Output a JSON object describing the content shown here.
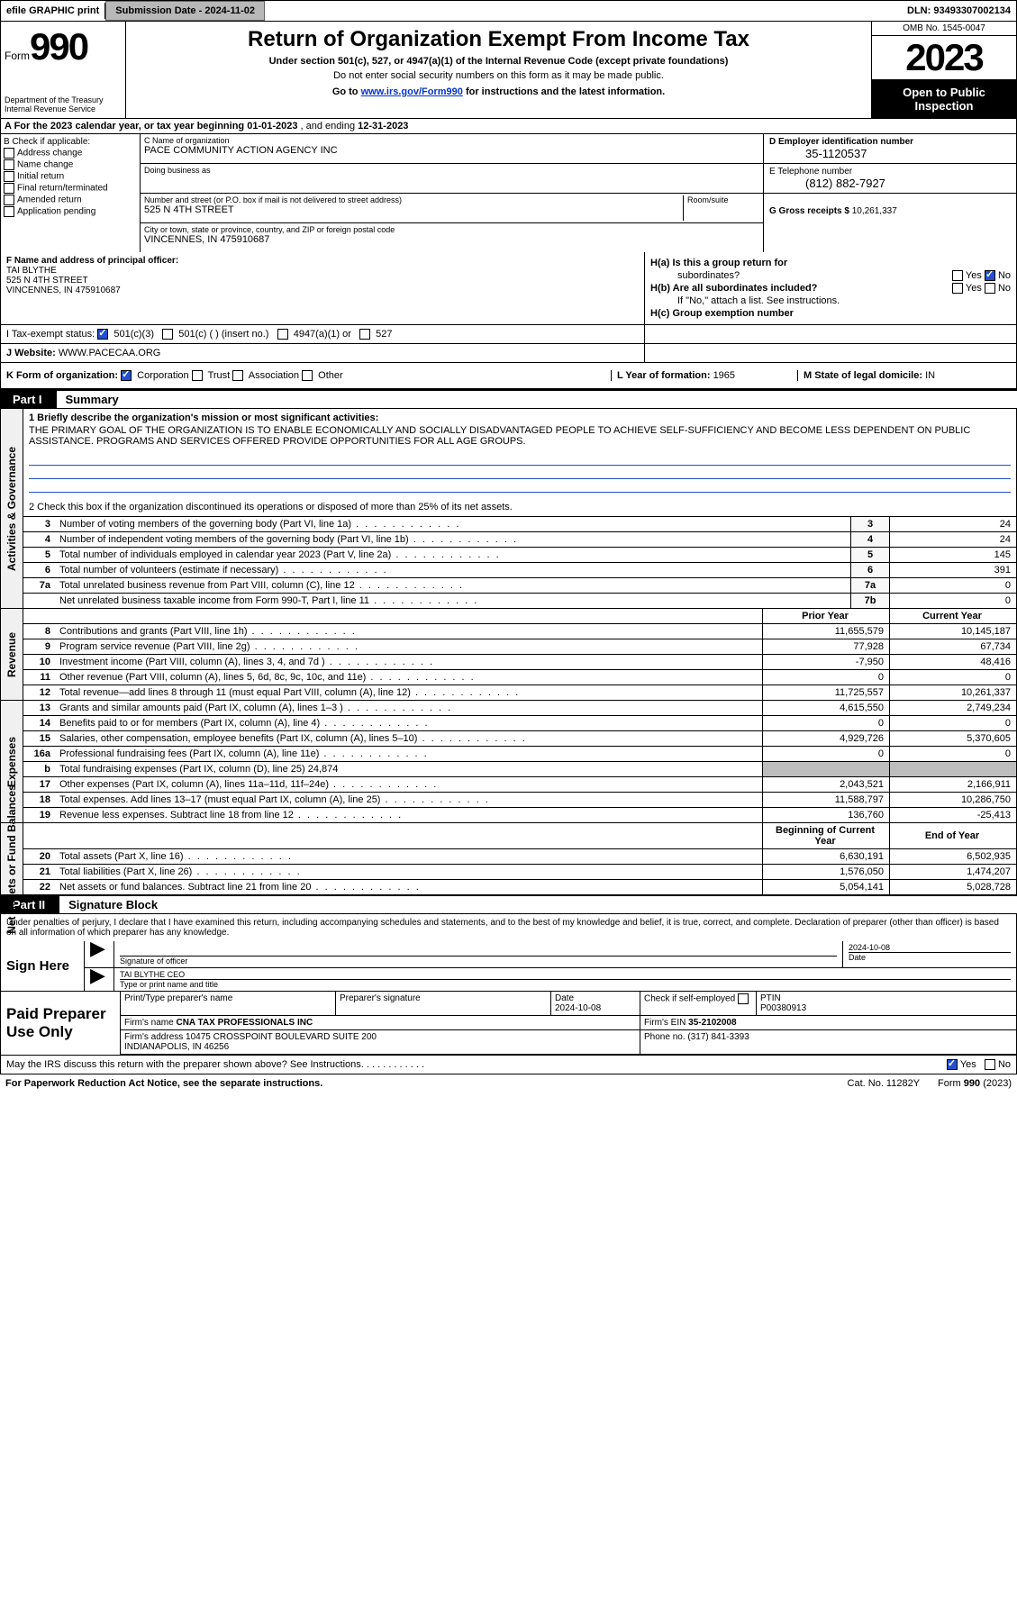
{
  "topbar": {
    "efile": "efile GRAPHIC print",
    "subdate_label": "Submission Date - ",
    "subdate": "2024-11-02",
    "dln_label": "DLN: ",
    "dln": "93493307002134"
  },
  "header": {
    "form_label": "Form",
    "form_num": "990",
    "title": "Return of Organization Exempt From Income Tax",
    "sub1": "Under section 501(c), 527, or 4947(a)(1) of the Internal Revenue Code (except private foundations)",
    "sub2": "Do not enter social security numbers on this form as it may be made public.",
    "goto_pre": "Go to ",
    "goto_link": "www.irs.gov/Form990",
    "goto_post": " for instructions and the latest information.",
    "dept": "Department of the Treasury\nInternal Revenue Service",
    "omb": "OMB No. 1545-0047",
    "year": "2023",
    "inspect": "Open to Public Inspection"
  },
  "rowA": {
    "pre": "A   For the 2023 calendar year, or tax year beginning ",
    "begin": "01-01-2023",
    "mid": "   , and ending ",
    "end": "12-31-2023"
  },
  "B": {
    "header": "B Check if applicable:",
    "items": [
      "Address change",
      "Name change",
      "Initial return",
      "Final return/terminated",
      "Amended return",
      "Application pending"
    ]
  },
  "C": {
    "name_label": "C Name of organization",
    "name": "PACE COMMUNITY ACTION AGENCY INC",
    "dba_label": "Doing business as",
    "dba": "",
    "street_label": "Number and street (or P.O. box if mail is not delivered to street address)",
    "street": "525 N 4TH STREET",
    "room_label": "Room/suite",
    "city_label": "City or town, state or province, country, and ZIP or foreign postal code",
    "city": "VINCENNES, IN  475910687"
  },
  "D": {
    "ein_label": "D Employer identification number",
    "ein": "35-1120537",
    "phone_label": "E Telephone number",
    "phone": "(812) 882-7927",
    "gross_label": "G Gross receipts $ ",
    "gross": "10,261,337"
  },
  "F": {
    "label": "F Name and address of principal officer:",
    "name": "TAI BLYTHE",
    "addr1": "525 N 4TH STREET",
    "addr2": "VINCENNES, IN  475910687"
  },
  "H": {
    "a_label": "H(a)  Is this a group return for",
    "a_label2": "subordinates?",
    "b_label": "H(b)  Are all subordinates included?",
    "b_note": "If \"No,\" attach a list. See instructions.",
    "c_label": "H(c)  Group exemption number ",
    "yes": "Yes",
    "no": "No"
  },
  "I": {
    "label": "I      Tax-exempt status:",
    "opt1": "501(c)(3)",
    "opt2": "501(c) (  ) (insert no.)",
    "opt3": "4947(a)(1) or",
    "opt4": "527"
  },
  "J": {
    "label": "J     Website: ",
    "url": "WWW.PACECAA.ORG"
  },
  "K": {
    "label": "K Form of organization:",
    "opts": [
      "Corporation",
      "Trust",
      "Association",
      "Other"
    ],
    "L_label": "L Year of formation: ",
    "L_val": "1965",
    "M_label": "M State of legal domicile: ",
    "M_val": "IN"
  },
  "part1": {
    "label": "Part I",
    "title": "Summary"
  },
  "summary": {
    "mission_hdr": "1   Briefly describe the organization's mission or most significant activities:",
    "mission": "THE PRIMARY GOAL OF THE ORGANIZATION IS TO ENABLE ECONOMICALLY AND SOCIALLY DISADVANTAGED PEOPLE TO ACHIEVE SELF-SUFFICIENCY AND BECOME LESS DEPENDENT ON PUBLIC ASSISTANCE. PROGRAMS AND SERVICES OFFERED PROVIDE OPPORTUNITIES FOR ALL AGE GROUPS.",
    "line2": "2   Check this box      if the organization discontinued its operations or disposed of more than 25% of its net assets."
  },
  "gov_rows": [
    {
      "n": "3",
      "d": "Number of voting members of the governing body (Part VI, line 1a)",
      "b": "3",
      "v": "24"
    },
    {
      "n": "4",
      "d": "Number of independent voting members of the governing body (Part VI, line 1b)",
      "b": "4",
      "v": "24"
    },
    {
      "n": "5",
      "d": "Total number of individuals employed in calendar year 2023 (Part V, line 2a)",
      "b": "5",
      "v": "145"
    },
    {
      "n": "6",
      "d": "Total number of volunteers (estimate if necessary)",
      "b": "6",
      "v": "391"
    },
    {
      "n": "7a",
      "d": "Total unrelated business revenue from Part VIII, column (C), line 12",
      "b": "7a",
      "v": "0"
    },
    {
      "n": "",
      "d": "Net unrelated business taxable income from Form 990-T, Part I, line 11",
      "b": "7b",
      "v": "0"
    }
  ],
  "rev_header": {
    "prior": "Prior Year",
    "current": "Current Year"
  },
  "rev_rows": [
    {
      "n": "8",
      "d": "Contributions and grants (Part VIII, line 1h)",
      "p": "11,655,579",
      "c": "10,145,187"
    },
    {
      "n": "9",
      "d": "Program service revenue (Part VIII, line 2g)",
      "p": "77,928",
      "c": "67,734"
    },
    {
      "n": "10",
      "d": "Investment income (Part VIII, column (A), lines 3, 4, and 7d )",
      "p": "-7,950",
      "c": "48,416"
    },
    {
      "n": "11",
      "d": "Other revenue (Part VIII, column (A), lines 5, 6d, 8c, 9c, 10c, and 11e)",
      "p": "0",
      "c": "0"
    },
    {
      "n": "12",
      "d": "Total revenue—add lines 8 through 11 (must equal Part VIII, column (A), line 12)",
      "p": "11,725,557",
      "c": "10,261,337"
    }
  ],
  "exp_rows": [
    {
      "n": "13",
      "d": "Grants and similar amounts paid (Part IX, column (A), lines 1–3 )",
      "p": "4,615,550",
      "c": "2,749,234"
    },
    {
      "n": "14",
      "d": "Benefits paid to or for members (Part IX, column (A), line 4)",
      "p": "0",
      "c": "0"
    },
    {
      "n": "15",
      "d": "Salaries, other compensation, employee benefits (Part IX, column (A), lines 5–10)",
      "p": "4,929,726",
      "c": "5,370,605"
    },
    {
      "n": "16a",
      "d": "Professional fundraising fees (Part IX, column (A), line 11e)",
      "p": "0",
      "c": "0"
    },
    {
      "n": "b",
      "d": "Total fundraising expenses (Part IX, column (D), line 25) 24,874",
      "p": "",
      "c": "",
      "gray": true
    },
    {
      "n": "17",
      "d": "Other expenses (Part IX, column (A), lines 11a–11d, 11f–24e)",
      "p": "2,043,521",
      "c": "2,166,911"
    },
    {
      "n": "18",
      "d": "Total expenses. Add lines 13–17 (must equal Part IX, column (A), line 25)",
      "p": "11,588,797",
      "c": "10,286,750"
    },
    {
      "n": "19",
      "d": "Revenue less expenses. Subtract line 18 from line 12",
      "p": "136,760",
      "c": "-25,413"
    }
  ],
  "na_header": {
    "prior": "Beginning of Current Year",
    "current": "End of Year"
  },
  "na_rows": [
    {
      "n": "20",
      "d": "Total assets (Part X, line 16)",
      "p": "6,630,191",
      "c": "6,502,935"
    },
    {
      "n": "21",
      "d": "Total liabilities (Part X, line 26)",
      "p": "1,576,050",
      "c": "1,474,207"
    },
    {
      "n": "22",
      "d": "Net assets or fund balances. Subtract line 21 from line 20",
      "p": "5,054,141",
      "c": "5,028,728"
    }
  ],
  "vlabels": {
    "gov": "Activities & Governance",
    "rev": "Revenue",
    "exp": "Expenses",
    "na": "Net Assets or Fund Balances"
  },
  "part2": {
    "label": "Part II",
    "title": "Signature Block"
  },
  "sig_text": "Under penalties of perjury, I declare that I have examined this return, including accompanying schedules and statements, and to the best of my knowledge and belief, it is true, correct, and complete. Declaration of preparer (other than officer) is based on all information of which preparer has any knowledge.",
  "sign": {
    "left": "Sign Here",
    "sig_label": "Signature of officer",
    "date_label": "Date",
    "date": "2024-10-08",
    "name_label": "Type or print name and title",
    "name": "TAI BLYTHE  CEO"
  },
  "prep": {
    "left": "Paid Preparer Use Only",
    "col1": "Print/Type preparer's name",
    "col2": "Preparer's signature",
    "col3_label": "Date",
    "col3": "2024-10-08",
    "col4_label": "Check        if self-employed",
    "col5_label": "PTIN",
    "col5": "P00380913",
    "firm_name_label": "Firm's name     ",
    "firm_name": "CNA TAX PROFESSIONALS INC",
    "firm_ein_label": "Firm's EIN  ",
    "firm_ein": "35-2102008",
    "firm_addr_label": "Firm's address ",
    "firm_addr": "10475 CROSSPOINT BOULEVARD SUITE 200\nINDIANAPOLIS, IN  46256",
    "firm_phone_label": "Phone no. ",
    "firm_phone": "(317) 841-3393"
  },
  "discuss": {
    "text": "May the IRS discuss this return with the preparer shown above? See Instructions.",
    "yes": "Yes",
    "no": "No"
  },
  "footer": {
    "l": "For Paperwork Reduction Act Notice, see the separate instructions.",
    "m": "Cat. No. 11282Y",
    "r": "Form 990 (2023)"
  }
}
